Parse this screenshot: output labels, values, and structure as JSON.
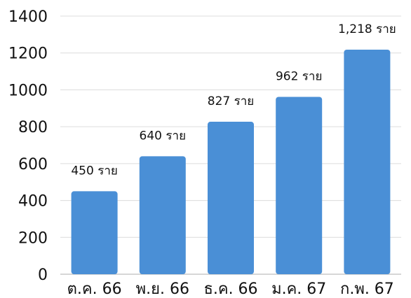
{
  "chart_data": {
    "type": "bar",
    "categories": [
      "ต.ค. 66",
      "พ.ย. 66",
      "ธ.ค. 66",
      "ม.ค. 67",
      "ก.พ. 67"
    ],
    "values": [
      450,
      640,
      827,
      962,
      1218
    ],
    "data_labels": [
      "450 ราย",
      "640 ราย",
      "827 ราย",
      "962 ราย",
      "1,218 ราย"
    ],
    "yticks": [
      "0",
      "200",
      "400",
      "600",
      "800",
      "1000",
      "1200",
      "1400"
    ],
    "ylim": [
      0,
      1400
    ],
    "grid": true,
    "bar_color": "#4a8fd6"
  }
}
